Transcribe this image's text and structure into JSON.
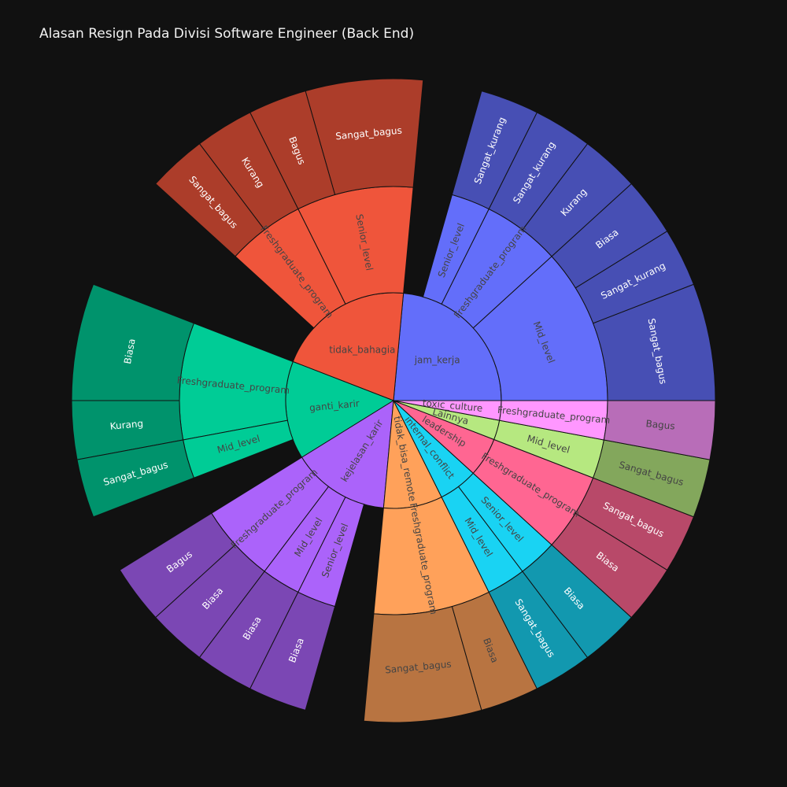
{
  "chart_data": {
    "type": "sunburst",
    "title": "Alasan Resign Pada Divisi Software Engineer (Back End)",
    "root": [
      {
        "label": "jam_kerja",
        "value": 8,
        "color": "#636efa",
        "children": [
          {
            "label": "Mid_level",
            "value": 4,
            "children": [
              {
                "label": "Sangat_bagus",
                "value": 2
              },
              {
                "label": "Sangat_kurang",
                "value": 1
              },
              {
                "label": "Biasa",
                "value": 1
              }
            ]
          },
          {
            "label": "Freshgraduate_program",
            "value": 2,
            "children": [
              {
                "label": "Kurang",
                "value": 1
              },
              {
                "label": "Sangat_kurang",
                "value": 1
              }
            ]
          },
          {
            "label": "Senior_level",
            "value": 1,
            "children": [
              {
                "label": "Sangat_kurang",
                "value": 1
              }
            ]
          }
        ]
      },
      {
        "label": "tidak_bahagia",
        "value": 7,
        "color": "#ef553b",
        "children": [
          {
            "label": "Senior_level",
            "value": 3,
            "children": [
              {
                "label": "Sangat_bagus",
                "value": 2
              },
              {
                "label": "Bagus",
                "value": 1
              }
            ]
          },
          {
            "label": "Freshgraduate_program",
            "value": 2,
            "children": [
              {
                "label": "Kurang",
                "value": 1
              },
              {
                "label": "Sangat_bagus",
                "value": 1
              }
            ]
          }
        ]
      },
      {
        "label": "ganti_karir",
        "value": 5,
        "color": "#00cc96",
        "children": [
          {
            "label": "Freshgraduate_program",
            "value": 3,
            "children": [
              {
                "label": "Biasa",
                "value": 2
              },
              {
                "label": "Kurang",
                "value": 1
              }
            ]
          },
          {
            "label": "Mid_level",
            "value": 1,
            "children": [
              {
                "label": "Sangat_bagus",
                "value": 1
              }
            ]
          }
        ]
      },
      {
        "label": "kejelasan_karir",
        "value": 5,
        "color": "#ab63fa",
        "children": [
          {
            "label": "Freshgraduate_program",
            "value": 2,
            "children": [
              {
                "label": "Bagus",
                "value": 1
              },
              {
                "label": "Biasa",
                "value": 1
              }
            ]
          },
          {
            "label": "Mid_level",
            "value": 1,
            "children": [
              {
                "label": "Biasa",
                "value": 1
              }
            ]
          },
          {
            "label": "Senior_level",
            "value": 1,
            "children": [
              {
                "label": "Biasa",
                "value": 1
              }
            ]
          }
        ]
      },
      {
        "label": "tidak_bisa_remote",
        "value": 3,
        "color": "#ffa15a",
        "children": [
          {
            "label": "Freshgraduate_program",
            "value": 3,
            "children": [
              {
                "label": "Sangat_bagus",
                "value": 2
              },
              {
                "label": "Biasa",
                "value": 1
              }
            ]
          }
        ]
      },
      {
        "label": "internal_conflict",
        "value": 2,
        "color": "#19d3f3",
        "children": [
          {
            "label": "Mid_level",
            "value": 1,
            "children": [
              {
                "label": "Sangat_bagus",
                "value": 1
              }
            ]
          },
          {
            "label": "Senior_level",
            "value": 1,
            "children": [
              {
                "label": "Biasa",
                "value": 1
              }
            ]
          }
        ]
      },
      {
        "label": "leadership",
        "value": 2,
        "color": "#ff6692",
        "children": [
          {
            "label": "Freshgraduate_program",
            "value": 2,
            "children": [
              {
                "label": "Biasa",
                "value": 1
              },
              {
                "label": "Sangat_bagus",
                "value": 1
              }
            ]
          }
        ]
      },
      {
        "label": "Lainnya",
        "value": 1,
        "color": "#b6e880",
        "children": [
          {
            "label": "Mid_level",
            "value": 1,
            "children": [
              {
                "label": "Sangat_bagus",
                "value": 1
              }
            ]
          }
        ]
      },
      {
        "label": "toxic_culture",
        "value": 1,
        "color": "#ff97ff",
        "children": [
          {
            "label": "Freshgraduate_program",
            "value": 1,
            "children": [
              {
                "label": "Bagus",
                "value": 1
              }
            ]
          }
        ]
      }
    ]
  }
}
